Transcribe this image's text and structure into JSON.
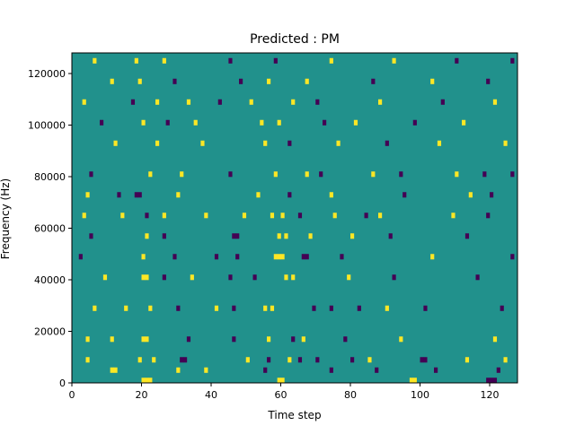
{
  "chart_data": {
    "type": "heatmap",
    "title": "Predicted : PM",
    "xlabel": "Time step",
    "ylabel": "Frequency (Hz)",
    "xlim": [
      0,
      128
    ],
    "ylim": [
      0,
      128000
    ],
    "n_time_steps": 128,
    "n_freq_bins": 64,
    "x_ticks": [
      {
        "value": 0,
        "label": "0"
      },
      {
        "value": 20,
        "label": "20"
      },
      {
        "value": 40,
        "label": "40"
      },
      {
        "value": 60,
        "label": "60"
      },
      {
        "value": 80,
        "label": "80"
      },
      {
        "value": 100,
        "label": "100"
      },
      {
        "value": 120,
        "label": "120"
      }
    ],
    "y_ticks": [
      {
        "value": 0,
        "label": "0"
      },
      {
        "value": 20000,
        "label": "20000"
      },
      {
        "value": 40000,
        "label": "40000"
      },
      {
        "value": 60000,
        "label": "60000"
      },
      {
        "value": 80000,
        "label": "80000"
      },
      {
        "value": 100000,
        "label": "100000"
      },
      {
        "value": 120000,
        "label": "120000"
      }
    ],
    "colors": {
      "background": "#21918c",
      "high": "#fde725",
      "low": "#440154",
      "mid_low": "#3b528b"
    },
    "default_value": 0,
    "cells": [
      [
        20,
        0,
        1,
        4
      ],
      [
        21,
        0,
        1,
        4
      ],
      [
        22,
        0,
        1,
        4
      ],
      [
        59,
        0,
        1,
        1
      ],
      [
        60,
        0,
        1,
        1
      ],
      [
        97,
        0,
        1,
        1
      ],
      [
        98,
        0,
        1,
        1
      ],
      [
        119,
        0,
        1,
        -1
      ],
      [
        120,
        0,
        1,
        -1
      ],
      [
        121,
        0,
        1,
        -1
      ],
      [
        11,
        2,
        1,
        1
      ],
      [
        12,
        2,
        1,
        1
      ],
      [
        30,
        2,
        1,
        1
      ],
      [
        38,
        2,
        1,
        1
      ],
      [
        55,
        2,
        1,
        -1
      ],
      [
        74,
        2,
        1,
        -1
      ],
      [
        87,
        2,
        1,
        -1
      ],
      [
        104,
        2,
        1,
        -1
      ],
      [
        122,
        2,
        1,
        -1
      ],
      [
        4,
        4,
        1,
        1
      ],
      [
        19,
        4,
        1,
        1
      ],
      [
        23,
        4,
        1,
        1
      ],
      [
        31,
        4,
        1,
        -1
      ],
      [
        32,
        4,
        1,
        -1
      ],
      [
        50,
        4,
        1,
        1
      ],
      [
        56,
        4,
        1,
        -1
      ],
      [
        62,
        4,
        1,
        1
      ],
      [
        65,
        4,
        1,
        -1
      ],
      [
        70,
        4,
        1,
        -1
      ],
      [
        80,
        4,
        1,
        -1
      ],
      [
        85,
        4,
        1,
        1
      ],
      [
        100,
        4,
        1,
        -1
      ],
      [
        101,
        4,
        1,
        -1
      ],
      [
        113,
        4,
        1,
        1
      ],
      [
        124,
        4,
        1,
        1
      ],
      [
        4,
        8,
        1,
        1
      ],
      [
        11,
        8,
        1,
        1
      ],
      [
        20,
        8,
        1,
        1
      ],
      [
        21,
        8,
        1,
        1
      ],
      [
        33,
        8,
        1,
        -1
      ],
      [
        46,
        8,
        1,
        -1
      ],
      [
        56,
        8,
        1,
        1
      ],
      [
        63,
        8,
        1,
        -1
      ],
      [
        66,
        8,
        1,
        1
      ],
      [
        78,
        8,
        1,
        -1
      ],
      [
        94,
        8,
        1,
        1
      ],
      [
        121,
        8,
        1,
        1
      ],
      [
        6,
        14,
        1,
        1
      ],
      [
        15,
        14,
        1,
        1
      ],
      [
        22,
        14,
        1,
        1
      ],
      [
        30,
        14,
        1,
        -1
      ],
      [
        41,
        14,
        1,
        1
      ],
      [
        46,
        14,
        1,
        -1
      ],
      [
        55,
        14,
        1,
        1
      ],
      [
        57,
        14,
        1,
        1
      ],
      [
        69,
        14,
        1,
        -1
      ],
      [
        74,
        14,
        1,
        -1
      ],
      [
        82,
        14,
        1,
        -1
      ],
      [
        90,
        14,
        1,
        1
      ],
      [
        101,
        14,
        1,
        -1
      ],
      [
        123,
        14,
        1,
        -1
      ],
      [
        9,
        20,
        1,
        1
      ],
      [
        20,
        20,
        1,
        1
      ],
      [
        21,
        20,
        1,
        1
      ],
      [
        26,
        20,
        1,
        -1
      ],
      [
        34,
        20,
        1,
        1
      ],
      [
        45,
        20,
        1,
        -1
      ],
      [
        52,
        20,
        1,
        -1
      ],
      [
        61,
        20,
        1,
        1
      ],
      [
        63,
        20,
        1,
        1
      ],
      [
        79,
        20,
        1,
        1
      ],
      [
        92,
        20,
        1,
        -1
      ],
      [
        116,
        20,
        1,
        -1
      ],
      [
        2,
        24,
        1,
        -1
      ],
      [
        20,
        24,
        1,
        1
      ],
      [
        29,
        24,
        1,
        -1
      ],
      [
        41,
        24,
        1,
        -1
      ],
      [
        47,
        24,
        1,
        -1
      ],
      [
        58,
        24,
        1,
        1
      ],
      [
        59,
        24,
        1,
        1
      ],
      [
        60,
        24,
        1,
        1
      ],
      [
        66,
        24,
        1,
        -1
      ],
      [
        67,
        24,
        1,
        -1
      ],
      [
        77,
        24,
        1,
        -1
      ],
      [
        103,
        24,
        1,
        1
      ],
      [
        126,
        24,
        1,
        -1
      ],
      [
        5,
        28,
        1,
        -1
      ],
      [
        21,
        28,
        1,
        1
      ],
      [
        26,
        28,
        1,
        -1
      ],
      [
        46,
        28,
        1,
        -1
      ],
      [
        47,
        28,
        1,
        -1
      ],
      [
        59,
        28,
        1,
        1
      ],
      [
        61,
        28,
        1,
        1
      ],
      [
        68,
        28,
        1,
        1
      ],
      [
        80,
        28,
        1,
        1
      ],
      [
        91,
        28,
        1,
        -1
      ],
      [
        113,
        28,
        1,
        -1
      ],
      [
        3,
        32,
        1,
        1
      ],
      [
        14,
        32,
        1,
        1
      ],
      [
        21,
        32,
        1,
        -1
      ],
      [
        26,
        32,
        1,
        1
      ],
      [
        38,
        32,
        1,
        1
      ],
      [
        49,
        32,
        1,
        1
      ],
      [
        57,
        32,
        1,
        1
      ],
      [
        60,
        32,
        1,
        1
      ],
      [
        65,
        32,
        1,
        -1
      ],
      [
        75,
        32,
        1,
        1
      ],
      [
        84,
        32,
        1,
        -1
      ],
      [
        88,
        32,
        1,
        1
      ],
      [
        109,
        32,
        1,
        1
      ],
      [
        119,
        32,
        1,
        -1
      ],
      [
        4,
        36,
        1,
        1
      ],
      [
        13,
        36,
        1,
        -1
      ],
      [
        18,
        36,
        1,
        -1
      ],
      [
        19,
        36,
        1,
        -1
      ],
      [
        30,
        36,
        1,
        1
      ],
      [
        53,
        36,
        1,
        1
      ],
      [
        62,
        36,
        1,
        -1
      ],
      [
        74,
        36,
        1,
        1
      ],
      [
        95,
        36,
        1,
        -1
      ],
      [
        114,
        36,
        1,
        1
      ],
      [
        120,
        36,
        1,
        -1
      ],
      [
        5,
        40,
        1,
        -1
      ],
      [
        22,
        40,
        1,
        1
      ],
      [
        31,
        40,
        1,
        1
      ],
      [
        45,
        40,
        1,
        -1
      ],
      [
        58,
        40,
        1,
        1
      ],
      [
        67,
        40,
        1,
        1
      ],
      [
        71,
        40,
        1,
        -1
      ],
      [
        86,
        40,
        1,
        1
      ],
      [
        94,
        40,
        1,
        -1
      ],
      [
        110,
        40,
        1,
        1
      ],
      [
        118,
        40,
        1,
        -1
      ],
      [
        126,
        40,
        1,
        -1
      ],
      [
        12,
        46,
        1,
        1
      ],
      [
        24,
        46,
        1,
        1
      ],
      [
        37,
        46,
        1,
        1
      ],
      [
        55,
        46,
        1,
        1
      ],
      [
        62,
        46,
        1,
        -1
      ],
      [
        76,
        46,
        1,
        1
      ],
      [
        90,
        46,
        1,
        -1
      ],
      [
        105,
        46,
        1,
        1
      ],
      [
        124,
        46,
        1,
        1
      ],
      [
        8,
        50,
        1,
        -1
      ],
      [
        20,
        50,
        1,
        1
      ],
      [
        27,
        50,
        1,
        -1
      ],
      [
        35,
        50,
        1,
        1
      ],
      [
        54,
        50,
        1,
        1
      ],
      [
        59,
        50,
        1,
        1
      ],
      [
        72,
        50,
        1,
        -1
      ],
      [
        81,
        50,
        1,
        1
      ],
      [
        98,
        50,
        1,
        -1
      ],
      [
        112,
        50,
        1,
        1
      ],
      [
        3,
        54,
        1,
        1
      ],
      [
        17,
        54,
        1,
        -1
      ],
      [
        24,
        54,
        1,
        1
      ],
      [
        33,
        54,
        1,
        1
      ],
      [
        42,
        54,
        1,
        -1
      ],
      [
        51,
        54,
        1,
        1
      ],
      [
        63,
        54,
        1,
        1
      ],
      [
        70,
        54,
        1,
        -1
      ],
      [
        88,
        54,
        1,
        1
      ],
      [
        106,
        54,
        1,
        -1
      ],
      [
        121,
        54,
        1,
        1
      ],
      [
        11,
        58,
        1,
        1
      ],
      [
        19,
        58,
        1,
        1
      ],
      [
        29,
        58,
        1,
        -1
      ],
      [
        48,
        58,
        1,
        -1
      ],
      [
        56,
        58,
        1,
        1
      ],
      [
        67,
        58,
        1,
        1
      ],
      [
        86,
        58,
        1,
        -1
      ],
      [
        103,
        58,
        1,
        1
      ],
      [
        119,
        58,
        1,
        -1
      ],
      [
        6,
        62,
        1,
        1
      ],
      [
        18,
        62,
        1,
        1
      ],
      [
        26,
        62,
        1,
        1
      ],
      [
        45,
        62,
        1,
        -1
      ],
      [
        58,
        62,
        1,
        -1
      ],
      [
        74,
        62,
        1,
        1
      ],
      [
        92,
        62,
        1,
        1
      ],
      [
        110,
        62,
        1,
        -1
      ],
      [
        126,
        62,
        1,
        -1
      ]
    ]
  }
}
